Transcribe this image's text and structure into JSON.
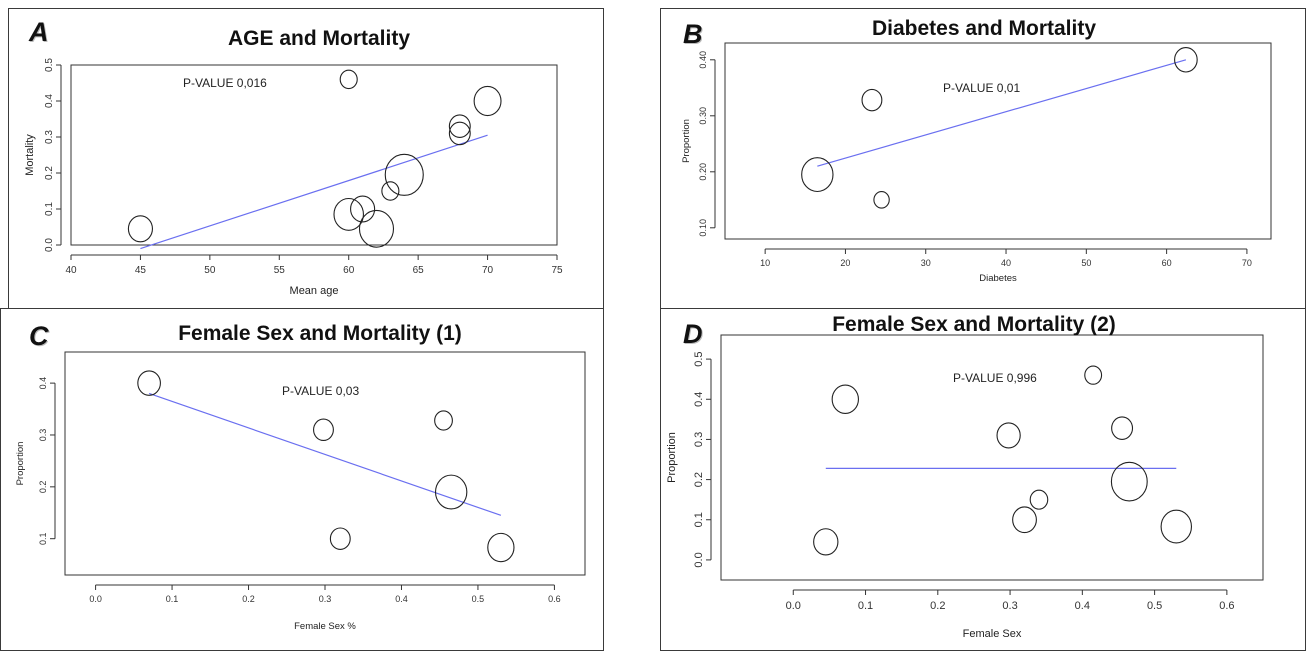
{
  "colors": {
    "background": "#ffffff",
    "frame": "#3a3a3a",
    "bubble_stroke": "#222222",
    "fit_line": "#6a6ff0"
  },
  "panels": [
    {
      "letter": "A",
      "title": "AGE and Mortality"
    },
    {
      "letter": "B",
      "title": "Diabetes and Mortality"
    },
    {
      "letter": "C",
      "title": "Female Sex and Mortality (1)"
    },
    {
      "letter": "D",
      "title": "Female Sex and Mortality (2)"
    }
  ],
  "chart_data": [
    {
      "type": "scatter",
      "subtype": "bubble meta-regression",
      "title": "AGE and Mortality",
      "xlabel": "Mean age",
      "ylabel": "Mortality",
      "xlim": [
        40,
        75
      ],
      "ylim": [
        0.0,
        0.5
      ],
      "xticks": [
        40,
        45,
        50,
        55,
        60,
        65,
        70,
        75
      ],
      "xtick_labels": [
        "40",
        "45",
        "50",
        "55",
        "60",
        "65",
        "70",
        "75"
      ],
      "yticks": [
        0.0,
        0.1,
        0.2,
        0.3,
        0.4,
        0.5
      ],
      "ytick_labels": [
        "0.0",
        "0.1",
        "0.2",
        "0.3",
        "0.4",
        "0.5"
      ],
      "annotation": "P-VALUE 0,016",
      "points": [
        {
          "x": 45,
          "y": 0.045,
          "size": 2
        },
        {
          "x": 60,
          "y": 0.46,
          "size": 1
        },
        {
          "x": 60,
          "y": 0.085,
          "size": 3
        },
        {
          "x": 61,
          "y": 0.1,
          "size": 2
        },
        {
          "x": 62,
          "y": 0.045,
          "size": 4
        },
        {
          "x": 63,
          "y": 0.15,
          "size": 1
        },
        {
          "x": 64,
          "y": 0.195,
          "size": 5
        },
        {
          "x": 68,
          "y": 0.33,
          "size": 1.5
        },
        {
          "x": 68,
          "y": 0.31,
          "size": 1.5
        },
        {
          "x": 70,
          "y": 0.4,
          "size": 2.5
        }
      ],
      "fit_line": {
        "x": [
          45,
          70
        ],
        "y": [
          -0.01,
          0.305
        ]
      }
    },
    {
      "type": "scatter",
      "subtype": "bubble meta-regression",
      "title": "Diabetes and Mortality",
      "xlabel": "Diabetes",
      "ylabel": "Proportion",
      "xlim": [
        5,
        73
      ],
      "ylim": [
        0.08,
        0.43
      ],
      "xticks": [
        10,
        20,
        30,
        40,
        50,
        60,
        70
      ],
      "xtick_labels": [
        "10",
        "20",
        "30",
        "40",
        "50",
        "60",
        "70"
      ],
      "yticks": [
        0.1,
        0.2,
        0.3,
        0.4
      ],
      "ytick_labels": [
        "0.10",
        "0.20",
        "0.30",
        "0.40"
      ],
      "annotation": "P-VALUE 0,01",
      "points": [
        {
          "x": 16.5,
          "y": 0.195,
          "size": 5
        },
        {
          "x": 23.3,
          "y": 0.328,
          "size": 2
        },
        {
          "x": 24.5,
          "y": 0.15,
          "size": 1.2
        },
        {
          "x": 62.4,
          "y": 0.4,
          "size": 2.6
        }
      ],
      "fit_line": {
        "x": [
          16.5,
          62.4
        ],
        "y": [
          0.21,
          0.4
        ]
      }
    },
    {
      "type": "scatter",
      "subtype": "bubble meta-regression",
      "title": "Female Sex and Mortality (1)",
      "xlabel": "Female Sex %",
      "ylabel": "Proportion",
      "xlim": [
        -0.04,
        0.64
      ],
      "ylim": [
        0.03,
        0.46
      ],
      "xticks": [
        0.0,
        0.1,
        0.2,
        0.3,
        0.4,
        0.5,
        0.6
      ],
      "xtick_labels": [
        "0.0",
        "0.1",
        "0.2",
        "0.3",
        "0.4",
        "0.5",
        "0.6"
      ],
      "yticks": [
        0.1,
        0.2,
        0.3,
        0.4
      ],
      "ytick_labels": [
        "0.1",
        "0.2",
        "0.3",
        "0.4"
      ],
      "annotation": "P-VALUE 0,03",
      "points": [
        {
          "x": 0.07,
          "y": 0.4,
          "size": 2.6
        },
        {
          "x": 0.298,
          "y": 0.31,
          "size": 2
        },
        {
          "x": 0.32,
          "y": 0.1,
          "size": 2
        },
        {
          "x": 0.455,
          "y": 0.328,
          "size": 1.6
        },
        {
          "x": 0.465,
          "y": 0.19,
          "size": 5
        },
        {
          "x": 0.53,
          "y": 0.083,
          "size": 3.5
        }
      ],
      "fit_line": {
        "x": [
          0.07,
          0.53
        ],
        "y": [
          0.38,
          0.145
        ]
      }
    },
    {
      "type": "scatter",
      "subtype": "bubble meta-regression",
      "title": "Female Sex and Mortality (2)",
      "xlabel": "Female Sex",
      "ylabel": "Proportion",
      "xlim": [
        -0.1,
        0.65
      ],
      "ylim": [
        -0.05,
        0.56
      ],
      "xticks": [
        0.0,
        0.1,
        0.2,
        0.3,
        0.4,
        0.5,
        0.6
      ],
      "xtick_labels": [
        "0.0",
        "0.1",
        "0.2",
        "0.3",
        "0.4",
        "0.5",
        "0.6"
      ],
      "yticks": [
        0.0,
        0.1,
        0.2,
        0.3,
        0.4,
        0.5
      ],
      "ytick_labels": [
        "0.0",
        "0.1",
        "0.2",
        "0.3",
        "0.4",
        "0.5"
      ],
      "annotation": "P-VALUE 0,996",
      "points": [
        {
          "x": 0.045,
          "y": 0.045,
          "size": 2.3
        },
        {
          "x": 0.072,
          "y": 0.4,
          "size": 2.7
        },
        {
          "x": 0.298,
          "y": 0.31,
          "size": 2.1
        },
        {
          "x": 0.32,
          "y": 0.1,
          "size": 2.2
        },
        {
          "x": 0.34,
          "y": 0.15,
          "size": 1.2
        },
        {
          "x": 0.415,
          "y": 0.46,
          "size": 1.1
        },
        {
          "x": 0.455,
          "y": 0.328,
          "size": 1.7
        },
        {
          "x": 0.465,
          "y": 0.195,
          "size": 5
        },
        {
          "x": 0.53,
          "y": 0.083,
          "size": 3.6
        }
      ],
      "fit_line": {
        "x": [
          0.045,
          0.53
        ],
        "y": [
          0.228,
          0.228
        ]
      }
    }
  ]
}
